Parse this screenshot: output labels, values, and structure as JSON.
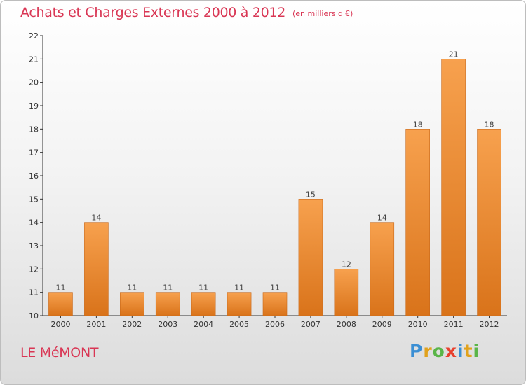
{
  "chart_data": {
    "type": "bar",
    "title": "Achats et Charges Externes 2000 à 2012",
    "subtitle": "(en milliers d'€)",
    "categories": [
      "2000",
      "2001",
      "2002",
      "2003",
      "2004",
      "2005",
      "2006",
      "2007",
      "2008",
      "2009",
      "2010",
      "2011",
      "2012"
    ],
    "values": [
      11,
      14,
      11,
      11,
      11,
      11,
      11,
      15,
      12,
      14,
      18,
      21,
      18
    ],
    "ylim": [
      10,
      22
    ],
    "yticks": [
      10,
      11,
      12,
      13,
      14,
      15,
      16,
      17,
      18,
      19,
      20,
      21,
      22
    ],
    "xlabel": "",
    "ylabel": "",
    "grid": false,
    "bar_color": "#f28c28",
    "bar_color_light": "#f7a14e",
    "bar_color_dark": "#d9731a"
  },
  "footer": {
    "commune": "LE MéMONT",
    "logo": [
      "P",
      "r",
      "o",
      "x",
      "i",
      "t",
      "i"
    ],
    "logo_colors": [
      "#3b8fd4",
      "#e1a21d",
      "#59b548",
      "#e8402e",
      "#3b8fd4",
      "#e1a21d",
      "#59b548"
    ]
  },
  "colors": {
    "title": "#d93654",
    "axis": "#333333"
  }
}
